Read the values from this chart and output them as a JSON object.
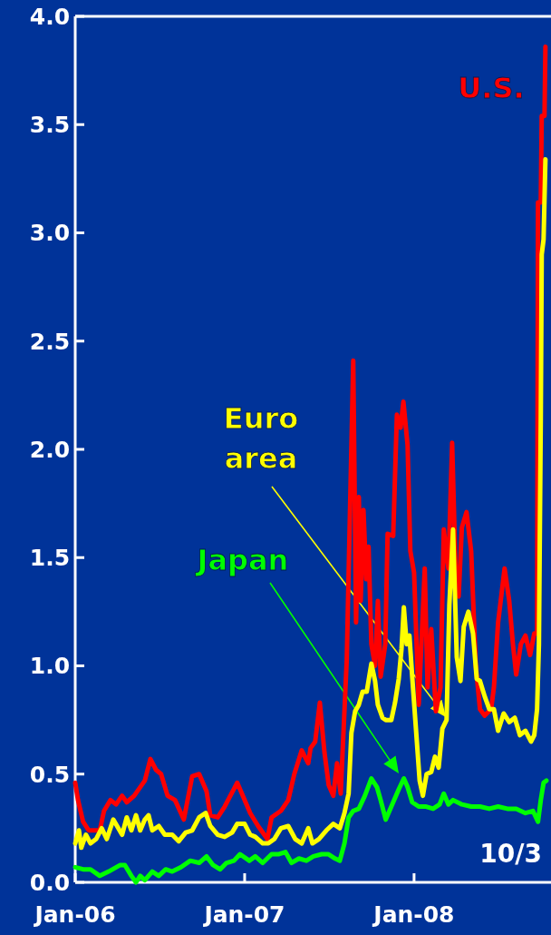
{
  "chart_data": {
    "type": "line",
    "xlim": [
      "2006-01-01",
      "2008-10-22"
    ],
    "xticks": [
      {
        "value": "2006-01-01",
        "label": "Jan-06"
      },
      {
        "value": "2007-01-01",
        "label": "Jan-07"
      },
      {
        "value": "2008-01-01",
        "label": "Jan-08"
      }
    ],
    "ylim": [
      0,
      4
    ],
    "yticks": [
      {
        "value": 0,
        "label": "0.0"
      },
      {
        "value": 0.5,
        "label": "0.5"
      },
      {
        "value": 1,
        "label": "1.0"
      },
      {
        "value": 1.5,
        "label": "1.5"
      },
      {
        "value": 2,
        "label": "2.0"
      },
      {
        "value": 2.5,
        "label": "2.5"
      },
      {
        "value": 3,
        "label": "3.0"
      },
      {
        "value": 3.5,
        "label": "3.5"
      },
      {
        "value": 4,
        "label": "4.0"
      }
    ],
    "grid": false,
    "line_style": "solid",
    "marker": "none",
    "annotations": [
      "10/3"
    ],
    "series": [
      {
        "name": "U.S.",
        "color": "#ff0000",
        "x": [
          "2006-01-01",
          "2006-01-07",
          "2006-01-18",
          "2006-01-30",
          "2006-02-23",
          "2006-03-04",
          "2006-03-18",
          "2006-03-30",
          "2006-04-12",
          "2006-04-22",
          "2006-05-08",
          "2006-05-31",
          "2006-06-12",
          "2006-06-24",
          "2006-07-05",
          "2006-07-19",
          "2006-08-04",
          "2006-08-23",
          "2006-09-10",
          "2006-09-25",
          "2006-10-11",
          "2006-10-19",
          "2006-11-04",
          "2006-11-19",
          "2006-12-16",
          "2006-12-28",
          "2007-01-13",
          "2007-01-30",
          "2007-02-19",
          "2007-02-28",
          "2007-03-20",
          "2007-04-05",
          "2007-04-18",
          "2007-05-04",
          "2007-05-18",
          "2007-05-23",
          "2007-06-02",
          "2007-06-12",
          "2007-06-22",
          "2007-07-01",
          "2007-07-11",
          "2007-07-19",
          "2007-07-27",
          "2007-08-09",
          "2007-08-23",
          "2007-08-29",
          "2007-09-04",
          "2007-09-08",
          "2007-09-14",
          "2007-09-20",
          "2007-09-25",
          "2007-10-01",
          "2007-10-09",
          "2007-10-15",
          "2007-10-21",
          "2007-10-31",
          "2007-11-05",
          "2007-11-17",
          "2007-11-25",
          "2007-12-03",
          "2007-12-09",
          "2007-12-18",
          "2007-12-24",
          "2008-01-01",
          "2008-01-11",
          "2008-01-24",
          "2008-01-30",
          "2008-02-07",
          "2008-02-17",
          "2008-02-27",
          "2008-03-05",
          "2008-03-15",
          "2008-03-23",
          "2008-03-31",
          "2008-04-06",
          "2008-04-13",
          "2008-04-23",
          "2008-05-03",
          "2008-05-13",
          "2008-05-22",
          "2008-06-01",
          "2008-06-15",
          "2008-06-21",
          "2008-06-30",
          "2008-07-14",
          "2008-07-24",
          "2008-08-01",
          "2008-08-08",
          "2008-08-18",
          "2008-08-28",
          "2008-09-07",
          "2008-09-16",
          "2008-09-22",
          "2008-09-24",
          "2008-09-30",
          "2008-10-02",
          "2008-10-08",
          "2008-10-10"
        ],
        "values": [
          0.46,
          0.38,
          0.28,
          0.24,
          0.24,
          0.33,
          0.38,
          0.36,
          0.4,
          0.37,
          0.4,
          0.47,
          0.57,
          0.52,
          0.5,
          0.4,
          0.38,
          0.29,
          0.49,
          0.5,
          0.42,
          0.31,
          0.3,
          0.35,
          0.46,
          0.4,
          0.32,
          0.26,
          0.2,
          0.3,
          0.33,
          0.38,
          0.5,
          0.61,
          0.55,
          0.62,
          0.65,
          0.83,
          0.6,
          0.45,
          0.4,
          0.55,
          0.41,
          1.03,
          2.41,
          1.2,
          1.78,
          1.3,
          1.72,
          1.4,
          1.55,
          1.1,
          1.0,
          1.3,
          0.95,
          1.1,
          1.61,
          1.6,
          2.16,
          2.1,
          2.22,
          2.02,
          1.53,
          1.43,
          0.82,
          1.45,
          0.9,
          1.17,
          0.79,
          0.9,
          1.63,
          1.45,
          2.03,
          1.4,
          1.32,
          1.64,
          1.71,
          1.53,
          1.0,
          0.8,
          0.77,
          0.8,
          0.9,
          1.2,
          1.45,
          1.3,
          1.1,
          0.96,
          1.1,
          1.14,
          1.05,
          1.15,
          1.15,
          3.14,
          3.14,
          3.54,
          3.54,
          3.86
        ]
      },
      {
        "name": "Euro area",
        "color": "#ffff00",
        "x": [
          "2006-01-01",
          "2006-01-09",
          "2006-01-14",
          "2006-01-24",
          "2006-02-03",
          "2006-02-15",
          "2006-02-27",
          "2006-03-10",
          "2006-03-24",
          "2006-04-12",
          "2006-04-22",
          "2006-05-02",
          "2006-05-12",
          "2006-05-21",
          "2006-05-31",
          "2006-06-08",
          "2006-06-16",
          "2006-06-30",
          "2006-07-13",
          "2006-07-29",
          "2006-08-12",
          "2006-08-27",
          "2006-09-10",
          "2006-09-25",
          "2006-10-09",
          "2006-10-19",
          "2006-11-04",
          "2006-11-19",
          "2006-12-05",
          "2006-12-16",
          "2007-01-01",
          "2007-01-13",
          "2007-01-24",
          "2007-02-09",
          "2007-02-21",
          "2007-03-06",
          "2007-03-20",
          "2007-04-05",
          "2007-04-20",
          "2007-05-04",
          "2007-05-18",
          "2007-05-27",
          "2007-06-10",
          "2007-06-26",
          "2007-07-11",
          "2007-07-25",
          "2007-08-04",
          "2007-08-13",
          "2007-08-19",
          "2007-08-27",
          "2007-09-04",
          "2007-09-12",
          "2007-09-21",
          "2007-10-01",
          "2007-10-09",
          "2007-10-15",
          "2007-10-25",
          "2007-11-01",
          "2007-11-13",
          "2007-11-21",
          "2007-11-29",
          "2007-12-05",
          "2007-12-10",
          "2007-12-16",
          "2007-12-22",
          "2007-12-28",
          "2008-01-05",
          "2008-01-13",
          "2008-01-20",
          "2008-01-28",
          "2008-02-07",
          "2008-02-15",
          "2008-02-23",
          "2008-03-02",
          "2008-03-11",
          "2008-03-17",
          "2008-03-25",
          "2008-04-02",
          "2008-04-10",
          "2008-04-17",
          "2008-04-27",
          "2008-05-07",
          "2008-05-15",
          "2008-05-22",
          "2008-06-01",
          "2008-06-11",
          "2008-06-21",
          "2008-06-30",
          "2008-07-12",
          "2008-07-24",
          "2008-08-05",
          "2008-08-16",
          "2008-08-28",
          "2008-09-09",
          "2008-09-16",
          "2008-09-22",
          "2008-09-26",
          "2008-09-30",
          "2008-10-02",
          "2008-10-06",
          "2008-10-10"
        ],
        "values": [
          0.18,
          0.24,
          0.16,
          0.22,
          0.18,
          0.2,
          0.25,
          0.2,
          0.29,
          0.22,
          0.3,
          0.24,
          0.31,
          0.24,
          0.29,
          0.31,
          0.24,
          0.26,
          0.22,
          0.22,
          0.19,
          0.23,
          0.24,
          0.3,
          0.32,
          0.26,
          0.22,
          0.21,
          0.23,
          0.27,
          0.27,
          0.22,
          0.21,
          0.18,
          0.18,
          0.2,
          0.25,
          0.26,
          0.2,
          0.18,
          0.25,
          0.18,
          0.2,
          0.24,
          0.27,
          0.25,
          0.32,
          0.41,
          0.69,
          0.79,
          0.82,
          0.88,
          0.88,
          1.01,
          0.93,
          0.82,
          0.76,
          0.75,
          0.75,
          0.83,
          0.94,
          1.08,
          1.27,
          1.1,
          1.14,
          0.95,
          0.71,
          0.47,
          0.4,
          0.5,
          0.51,
          0.58,
          0.53,
          0.71,
          0.75,
          1.28,
          1.63,
          1.04,
          0.93,
          1.18,
          1.25,
          1.15,
          0.94,
          0.93,
          0.86,
          0.8,
          0.8,
          0.7,
          0.78,
          0.74,
          0.76,
          0.68,
          0.7,
          0.65,
          0.68,
          0.8,
          1.1,
          2.15,
          2.9,
          2.97,
          3.34
        ]
      },
      {
        "name": "Japan",
        "color": "#00ff00",
        "x": [
          "2006-01-01",
          "2006-01-18",
          "2006-02-03",
          "2006-02-23",
          "2006-03-14",
          "2006-04-08",
          "2006-04-18",
          "2006-05-02",
          "2006-05-12",
          "2006-05-21",
          "2006-05-31",
          "2006-06-16",
          "2006-06-30",
          "2006-07-15",
          "2006-07-29",
          "2006-08-17",
          "2006-09-06",
          "2006-09-25",
          "2006-10-11",
          "2006-10-25",
          "2006-11-09",
          "2006-11-23",
          "2006-12-09",
          "2006-12-22",
          "2007-01-11",
          "2007-01-24",
          "2007-02-09",
          "2007-02-28",
          "2007-03-16",
          "2007-03-30",
          "2007-04-12",
          "2007-04-28",
          "2007-05-14",
          "2007-05-29",
          "2007-06-16",
          "2007-06-30",
          "2007-07-15",
          "2007-07-25",
          "2007-08-04",
          "2007-08-13",
          "2007-08-23",
          "2007-09-04",
          "2007-09-17",
          "2007-10-01",
          "2007-10-13",
          "2007-10-21",
          "2007-11-01",
          "2007-11-13",
          "2007-11-29",
          "2007-12-10",
          "2007-12-18",
          "2007-12-28",
          "2008-01-11",
          "2008-01-27",
          "2008-02-11",
          "2008-02-25",
          "2008-03-05",
          "2008-03-15",
          "2008-03-25",
          "2008-04-13",
          "2008-05-03",
          "2008-05-22",
          "2008-06-11",
          "2008-06-30",
          "2008-07-20",
          "2008-08-08",
          "2008-08-28",
          "2008-09-13",
          "2008-09-24",
          "2008-09-30",
          "2008-10-06",
          "2008-10-12"
        ],
        "values": [
          0.07,
          0.06,
          0.06,
          0.03,
          0.05,
          0.08,
          0.08,
          0.03,
          0.0,
          0.03,
          0.01,
          0.05,
          0.03,
          0.06,
          0.05,
          0.07,
          0.1,
          0.09,
          0.12,
          0.08,
          0.06,
          0.09,
          0.1,
          0.13,
          0.1,
          0.12,
          0.09,
          0.13,
          0.13,
          0.14,
          0.09,
          0.11,
          0.1,
          0.12,
          0.13,
          0.13,
          0.11,
          0.1,
          0.18,
          0.3,
          0.33,
          0.34,
          0.4,
          0.48,
          0.44,
          0.38,
          0.29,
          0.35,
          0.43,
          0.48,
          0.44,
          0.37,
          0.35,
          0.35,
          0.34,
          0.36,
          0.41,
          0.36,
          0.38,
          0.36,
          0.35,
          0.35,
          0.34,
          0.35,
          0.34,
          0.34,
          0.32,
          0.33,
          0.28,
          0.38,
          0.46,
          0.47
        ]
      }
    ]
  }
}
